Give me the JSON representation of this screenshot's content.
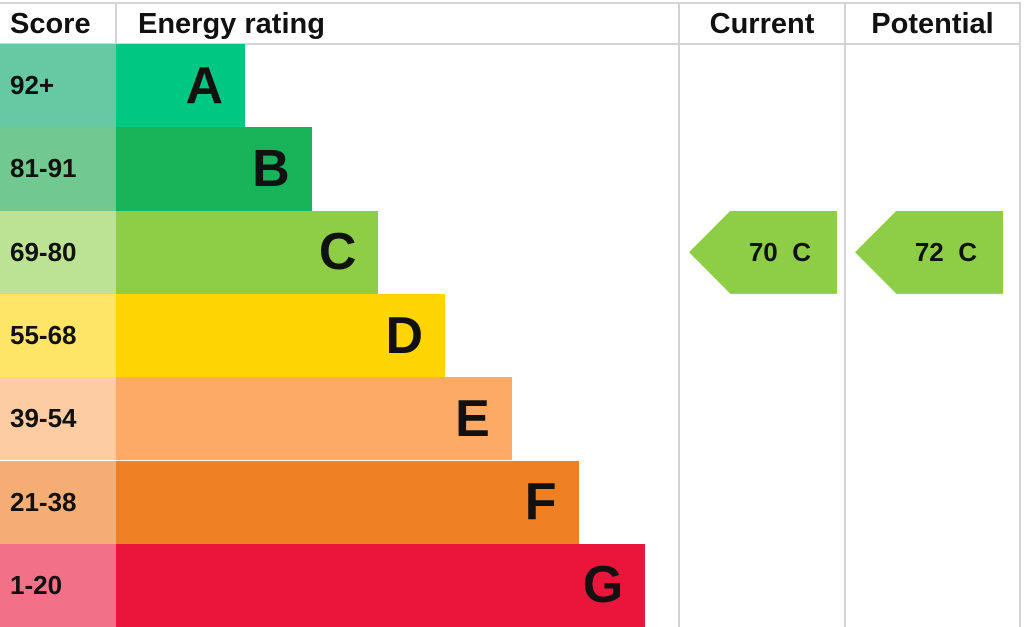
{
  "chart_data": {
    "type": "bar",
    "headers": {
      "score": "Score",
      "rating": "Energy rating",
      "current": "Current",
      "potential": "Potential"
    },
    "bands": [
      {
        "score": "92+",
        "letter": "A",
        "color": "#00c781",
        "score_color": "#66c9a4"
      },
      {
        "score": "81-91",
        "letter": "B",
        "color": "#19b459",
        "score_color": "#72c98f"
      },
      {
        "score": "69-80",
        "letter": "C",
        "color": "#8dce46",
        "score_color": "#bce293"
      },
      {
        "score": "55-68",
        "letter": "D",
        "color": "#ffd500",
        "score_color": "#ffe566"
      },
      {
        "score": "39-54",
        "letter": "E",
        "color": "#fcaa65",
        "score_color": "#fdcca3"
      },
      {
        "score": "21-38",
        "letter": "F",
        "color": "#ef8023",
        "score_color": "#f4ad73"
      },
      {
        "score": "1-20",
        "letter": "G",
        "color": "#e9153b",
        "score_color": "#f27088"
      }
    ],
    "current": {
      "value": 70,
      "band": "C",
      "label": "70  C"
    },
    "potential": {
      "value": 72,
      "band": "C",
      "label": "72  C"
    }
  }
}
